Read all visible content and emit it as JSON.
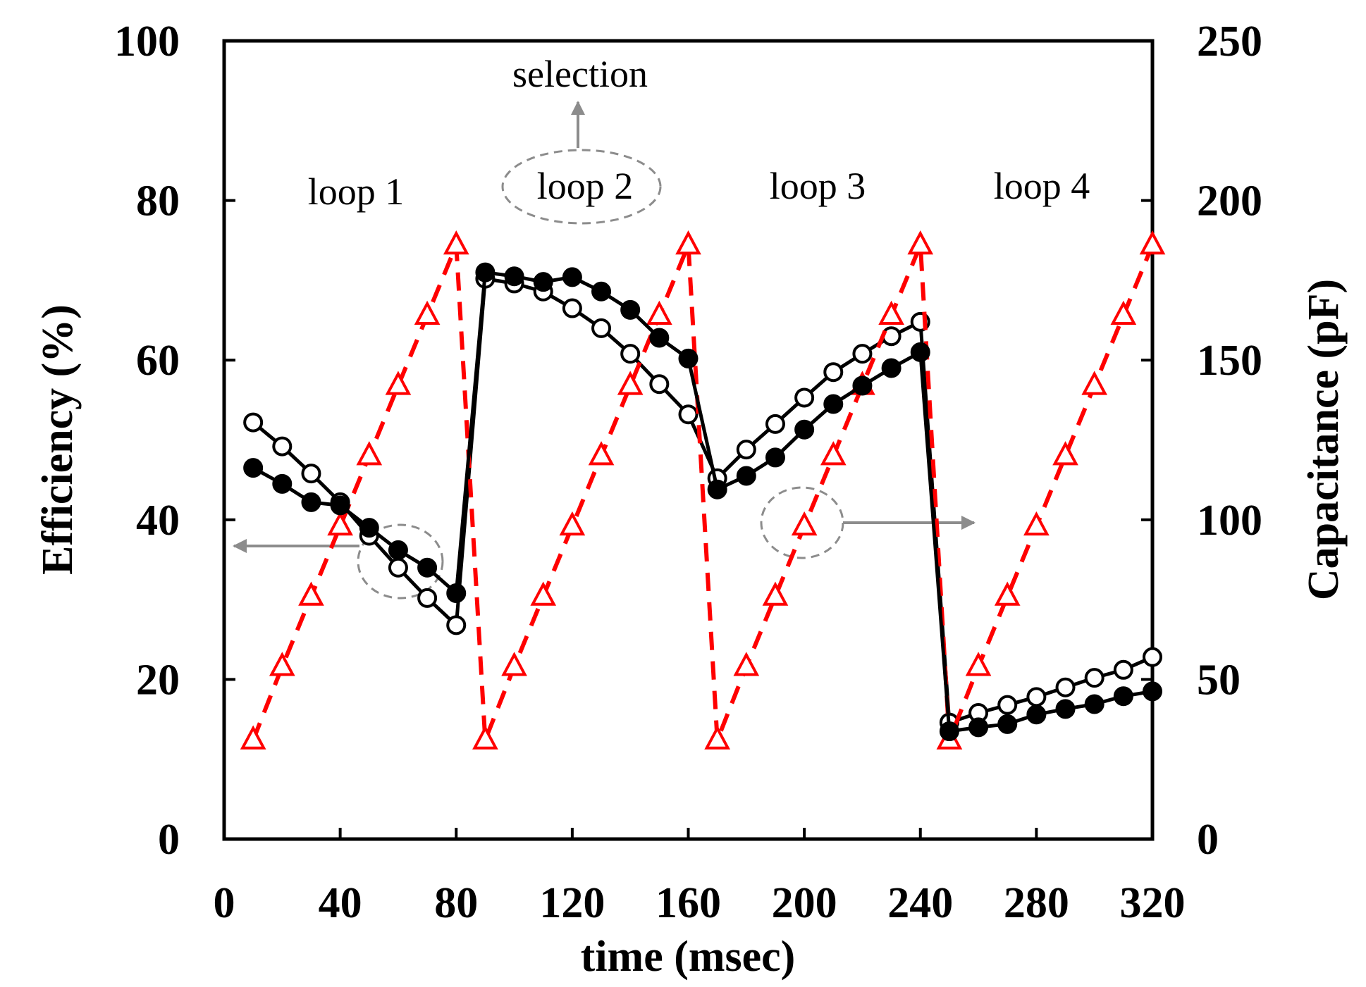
{
  "chart_data": {
    "type": "line",
    "title": "",
    "xlabel": "time (msec)",
    "ylabel": "Efficiency (%)",
    "y2label": "Capacitance (pF)",
    "xlim": [
      0,
      320
    ],
    "ylim": [
      0,
      100
    ],
    "y2lim": [
      0,
      250
    ],
    "xticks": [
      "0",
      "40",
      "80",
      "120",
      "160",
      "200",
      "240",
      "280",
      "320"
    ],
    "yticks": [
      "0",
      "20",
      "40",
      "60",
      "80",
      "100"
    ],
    "y2ticks": [
      "0",
      "50",
      "100",
      "150",
      "200",
      "250"
    ],
    "grid": false,
    "series": [
      {
        "name": "Efficiency (filled circles)",
        "axis": "left",
        "marker": "filled-circle",
        "color": "#000000",
        "x": [
          10,
          20,
          30,
          40,
          50,
          60,
          70,
          80,
          90,
          100,
          110,
          120,
          130,
          140,
          150,
          160,
          170,
          180,
          190,
          200,
          210,
          220,
          230,
          240,
          250,
          260,
          270,
          280,
          290,
          300,
          310,
          320
        ],
        "y": [
          46.5,
          44.5,
          42.2,
          41.8,
          39,
          36.2,
          34,
          30.8,
          71,
          70.5,
          69.8,
          70.4,
          68.6,
          66.3,
          62.8,
          60.2,
          43.8,
          45.5,
          47.8,
          51.3,
          54.5,
          56.8,
          59,
          61,
          13.5,
          14,
          14.4,
          15.6,
          16.3,
          16.9,
          17.9,
          18.5
        ]
      },
      {
        "name": "Efficiency (open circles)",
        "axis": "left",
        "marker": "open-circle",
        "color": "#000000",
        "x": [
          10,
          20,
          30,
          40,
          50,
          60,
          70,
          80,
          90,
          100,
          110,
          120,
          130,
          140,
          150,
          160,
          170,
          180,
          190,
          200,
          210,
          220,
          230,
          240,
          250,
          260,
          270,
          280,
          290,
          300,
          310,
          320
        ],
        "y": [
          52.2,
          49.2,
          45.8,
          42.2,
          38,
          34,
          30.2,
          26.8,
          70.2,
          69.6,
          68.6,
          66.5,
          64,
          60.8,
          57,
          53.2,
          45.2,
          48.8,
          52,
          55.3,
          58.5,
          60.8,
          63,
          64.8,
          14.6,
          15.8,
          16.8,
          17.8,
          19,
          20.2,
          21.2,
          22.8
        ]
      },
      {
        "name": "Capacitance (triangles)",
        "axis": "right",
        "marker": "open-triangle",
        "color": "#ff0000",
        "dashed": true,
        "x": [
          10,
          20,
          30,
          40,
          50,
          60,
          70,
          80,
          90,
          100,
          110,
          120,
          130,
          140,
          150,
          160,
          170,
          180,
          190,
          200,
          210,
          220,
          230,
          240,
          250,
          260,
          270,
          280,
          290,
          300,
          310,
          320
        ],
        "y": [
          31,
          54,
          76,
          98,
          120,
          142,
          164,
          186,
          31,
          54,
          76,
          98,
          120,
          142,
          164,
          186,
          31,
          54,
          76,
          98,
          120,
          142,
          164,
          186,
          31,
          54,
          76,
          98,
          120,
          142,
          164,
          186
        ]
      }
    ],
    "annotations": {
      "loops": [
        "loop 1",
        "loop 2",
        "loop 3",
        "loop 4"
      ],
      "selection": "selection"
    }
  }
}
